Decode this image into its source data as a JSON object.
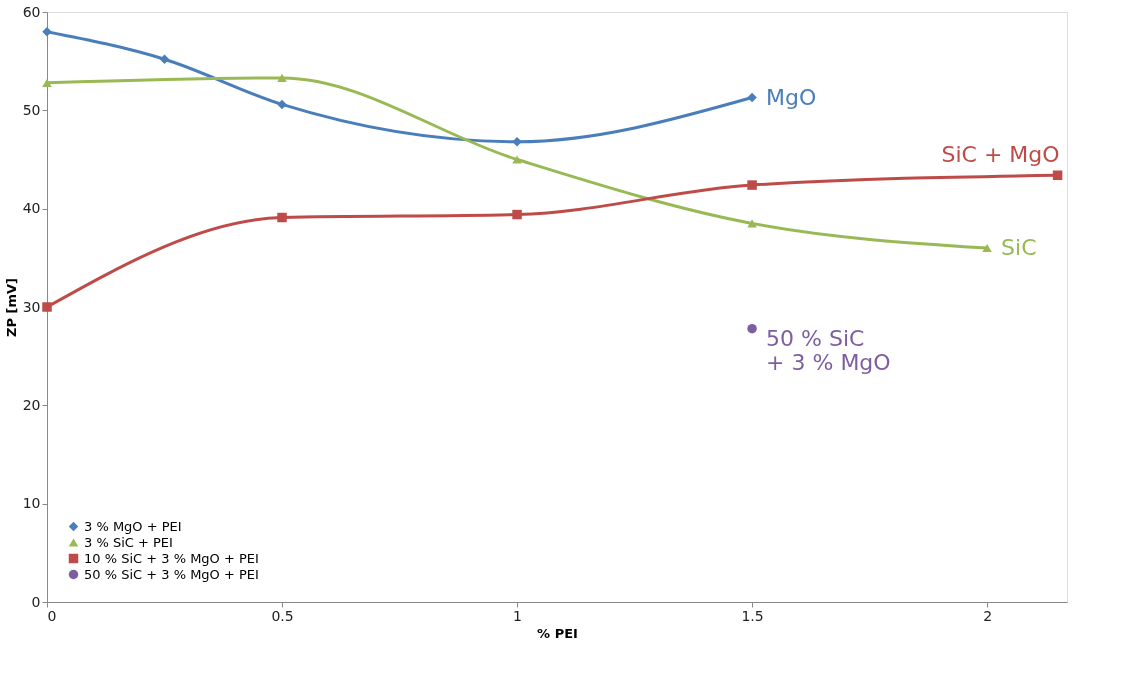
{
  "chart_data": {
    "type": "line",
    "xlabel": "% PEI",
    "ylabel": "ZP [mV]",
    "xlim": [
      0,
      2.17
    ],
    "xticks": [
      0,
      0.5,
      1,
      1.5,
      2
    ],
    "ylim": [
      0,
      60
    ],
    "yticks": [
      0,
      10,
      20,
      30,
      40,
      50,
      60
    ],
    "grid": false,
    "legend": "bottom left",
    "line_style": "solid",
    "series": [
      {
        "name": "3 % MgO + PEI",
        "color": "#4a7ebb",
        "marker": "diamond",
        "x": [
          0,
          0.25,
          0.5,
          1,
          1.5
        ],
        "values": [
          58,
          55.2,
          50.6,
          46.8,
          51.3
        ]
      },
      {
        "name": "3 % SiC + PEI",
        "color": "#98b954",
        "marker": "triangle",
        "x": [
          0,
          0.5,
          1,
          1.5,
          2
        ],
        "values": [
          52.8,
          53.3,
          45,
          38.5,
          36
        ]
      },
      {
        "name": "10 % SiC + 3 % MgO + PEI",
        "color": "#be4b48",
        "marker": "square",
        "x": [
          0,
          0.5,
          1,
          1.5,
          2.15
        ],
        "values": [
          30,
          39.1,
          39.4,
          42.4,
          43.4
        ]
      },
      {
        "name": "50 % SiC + 3 % MgO + PEI",
        "color": "#7d5fa0",
        "marker": "circle",
        "type": "scatter",
        "x": [
          1.5
        ],
        "values": [
          27.8
        ]
      }
    ],
    "annotations": [
      "MgO",
      "SiC",
      "SiC + MgO",
      "50 % SiC\n+ 3 % MgO"
    ]
  }
}
